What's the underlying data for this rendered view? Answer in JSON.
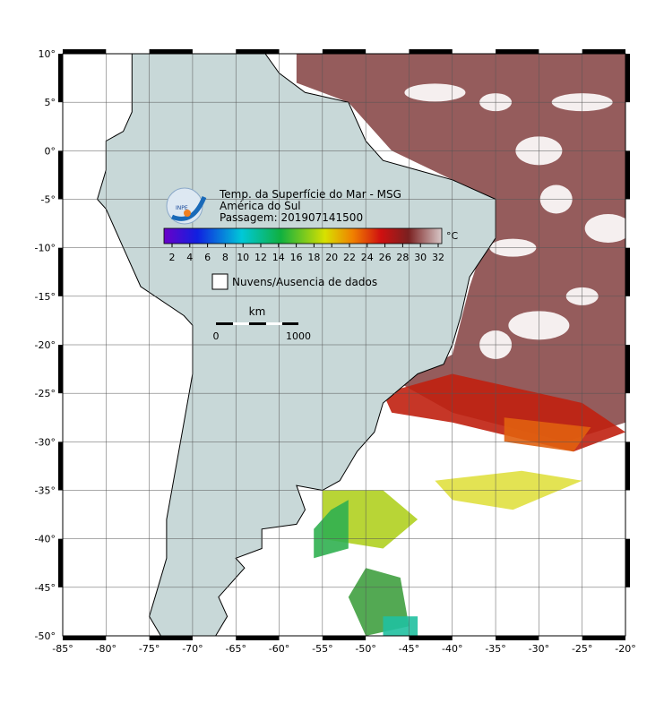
{
  "map": {
    "title_lines": [
      "Temp. da Superfície do Mar - MSG",
      "América do Sul",
      "Passagem: 201907141500"
    ],
    "logo_text": "INPE",
    "colorbar": {
      "unit": "°C",
      "ticks": [
        2,
        4,
        6,
        8,
        10,
        12,
        14,
        16,
        18,
        20,
        22,
        24,
        26,
        28,
        30,
        32
      ]
    },
    "legend": "Nuvens/Ausencia de dados",
    "scale_bar": {
      "unit": "km",
      "start": 0,
      "end": 1000
    },
    "lat_ticks": [
      {
        "value": 10,
        "label": "10°"
      },
      {
        "value": 5,
        "label": "5°"
      },
      {
        "value": 0,
        "label": "0°"
      },
      {
        "value": -5,
        "label": "-5°"
      },
      {
        "value": -10,
        "label": "-10°"
      },
      {
        "value": -15,
        "label": "-15°"
      },
      {
        "value": -20,
        "label": "-20°"
      },
      {
        "value": -25,
        "label": "-25°"
      },
      {
        "value": -30,
        "label": "-30°"
      },
      {
        "value": -35,
        "label": "-35°"
      },
      {
        "value": -40,
        "label": "-40°"
      },
      {
        "value": -45,
        "label": "-45°"
      },
      {
        "value": -50,
        "label": "-50°"
      }
    ],
    "lon_ticks": [
      {
        "value": -85,
        "label": "-85°"
      },
      {
        "value": -80,
        "label": "-80°"
      },
      {
        "value": -75,
        "label": "-75°"
      },
      {
        "value": -70,
        "label": "-70°"
      },
      {
        "value": -65,
        "label": "-65°"
      },
      {
        "value": -60,
        "label": "-60°"
      },
      {
        "value": -55,
        "label": "-55°"
      },
      {
        "value": -50,
        "label": "-50°"
      },
      {
        "value": -45,
        "label": "-45°"
      },
      {
        "value": -40,
        "label": "-40°"
      },
      {
        "value": -35,
        "label": "-35°"
      },
      {
        "value": -30,
        "label": "-30°"
      },
      {
        "value": -25,
        "label": "-25°"
      },
      {
        "value": -20,
        "label": "-20°"
      }
    ]
  }
}
